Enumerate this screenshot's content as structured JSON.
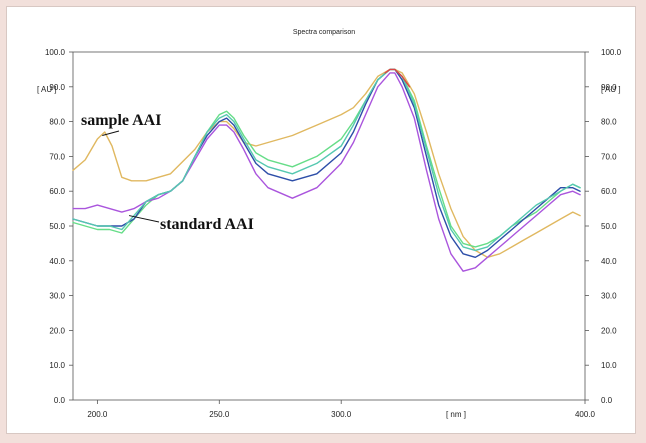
{
  "chart_data": {
    "type": "line",
    "title": "Spectra comparison",
    "xlabel": "[ nm ]",
    "ylabel_left": "[ AU ]",
    "ylabel_right": "[ AU ]",
    "xlim": [
      190,
      400
    ],
    "ylim": [
      0,
      100
    ],
    "x_ticks": [
      200,
      250,
      300,
      400
    ],
    "x_tick_labels": [
      "200.0",
      "250.0",
      "300.0",
      "400.0"
    ],
    "y_ticks": [
      0,
      10,
      20,
      30,
      40,
      50,
      60,
      70,
      80,
      90,
      100
    ],
    "y_tick_labels": [
      "0.0",
      "10.0",
      "20.0",
      "30.0",
      "40.0",
      "50.0",
      "60.0",
      "70.0",
      "80.0",
      "90.0",
      "100.0"
    ],
    "grid": false,
    "annotations": [
      {
        "text": "sample AAI",
        "x": 202,
        "y": 76
      },
      {
        "text": "standard AAI",
        "x": 213,
        "y": 53
      }
    ],
    "series": [
      {
        "color": "#e0b860",
        "x": [
          190,
          195,
          200,
          203,
          206,
          210,
          214,
          220,
          230,
          240,
          245,
          250,
          253,
          256,
          260,
          265,
          270,
          280,
          290,
          300,
          305,
          310,
          315,
          320,
          322,
          325,
          330,
          335,
          340,
          345,
          350,
          355,
          360,
          365,
          370,
          375,
          380,
          385,
          390,
          395,
          398
        ],
        "y": [
          66,
          69,
          75,
          77,
          73,
          64,
          63,
          63,
          65,
          72,
          77,
          80,
          80,
          78,
          74,
          73,
          74,
          76,
          79,
          82,
          84,
          88,
          93,
          95,
          95,
          94,
          88,
          77,
          65,
          55,
          47,
          43,
          41,
          42,
          44,
          46,
          48,
          50,
          52,
          54,
          53
        ]
      },
      {
        "color": "#66dd88",
        "x": [
          190,
          195,
          200,
          205,
          210,
          215,
          220,
          225,
          230,
          235,
          240,
          245,
          250,
          253,
          256,
          260,
          265,
          270,
          280,
          290,
          300,
          305,
          310,
          315,
          320,
          322,
          325,
          330,
          335,
          340,
          345,
          350,
          355,
          360,
          365,
          370,
          375,
          380,
          385,
          390,
          395,
          398
        ],
        "y": [
          51,
          50,
          49,
          49,
          48,
          52,
          56,
          59,
          60,
          63,
          70,
          77,
          82,
          83,
          81,
          76,
          71,
          69,
          67,
          70,
          75,
          80,
          86,
          92,
          95,
          95,
          93,
          86,
          73,
          61,
          50,
          45,
          44,
          45,
          47,
          50,
          52,
          54,
          57,
          60,
          62,
          61
        ]
      },
      {
        "color": "#2d4ea8",
        "x": [
          190,
          195,
          200,
          205,
          210,
          215,
          220,
          225,
          230,
          235,
          240,
          245,
          250,
          253,
          256,
          260,
          265,
          270,
          280,
          290,
          300,
          305,
          310,
          315,
          320,
          322,
          325,
          330,
          335,
          340,
          345,
          350,
          355,
          360,
          365,
          370,
          375,
          380,
          385,
          390,
          395,
          398
        ],
        "y": [
          52,
          51,
          50,
          50,
          50,
          52,
          57,
          59,
          60,
          63,
          70,
          76,
          80,
          81,
          79,
          74,
          68,
          65,
          63,
          65,
          71,
          77,
          85,
          92,
          95,
          95,
          92,
          84,
          70,
          56,
          47,
          42,
          41,
          43,
          46,
          49,
          52,
          55,
          58,
          61,
          61,
          60
        ]
      },
      {
        "color": "#aa55dd",
        "x": [
          190,
          195,
          200,
          205,
          210,
          215,
          220,
          225,
          230,
          235,
          240,
          245,
          250,
          253,
          256,
          260,
          265,
          270,
          280,
          290,
          300,
          305,
          310,
          315,
          320,
          322,
          325,
          330,
          335,
          340,
          345,
          350,
          355,
          360,
          365,
          370,
          375,
          380,
          385,
          390,
          395,
          398
        ],
        "y": [
          55,
          55,
          56,
          55,
          54,
          55,
          57,
          58,
          60,
          63,
          69,
          75,
          79,
          79,
          77,
          72,
          65,
          61,
          58,
          61,
          68,
          74,
          82,
          90,
          94,
          94,
          90,
          81,
          66,
          52,
          42,
          37,
          38,
          41,
          44,
          47,
          50,
          53,
          56,
          59,
          60,
          59
        ]
      },
      {
        "color": "#55c8b0",
        "x": [
          190,
          195,
          200,
          205,
          210,
          215,
          220,
          225,
          230,
          235,
          240,
          245,
          250,
          253,
          256,
          260,
          265,
          270,
          280,
          290,
          300,
          305,
          310,
          315,
          320,
          322,
          325,
          330,
          335,
          340,
          345,
          350,
          355,
          360,
          365,
          370,
          375,
          380,
          385,
          390,
          395,
          398
        ],
        "y": [
          52,
          51,
          50,
          50,
          49,
          53,
          57,
          59,
          60,
          63,
          70,
          77,
          81,
          82,
          80,
          75,
          69,
          67,
          65,
          68,
          73,
          79,
          86,
          92,
          95,
          95,
          93,
          85,
          72,
          59,
          49,
          44,
          43,
          44,
          47,
          50,
          53,
          56,
          58,
          60,
          62,
          61
        ]
      },
      {
        "color": "#dd4444",
        "x": [
          318,
          320,
          322,
          325,
          328
        ],
        "y": [
          94,
          95,
          95,
          93,
          90
        ]
      }
    ]
  }
}
